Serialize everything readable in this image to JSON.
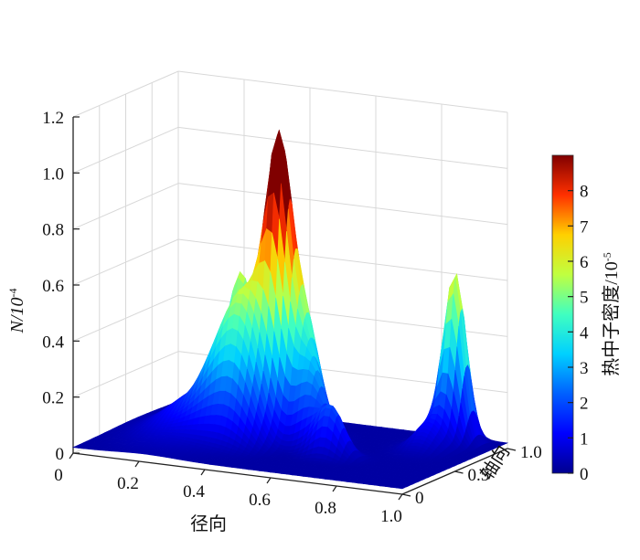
{
  "chart_data": {
    "type": "surface3d",
    "x_axis": {
      "label": "径向",
      "range": [
        0,
        1.0
      ],
      "ticks": [
        "0",
        "0.2",
        "0.4",
        "0.6",
        "0.8",
        "1.0"
      ]
    },
    "y_axis": {
      "label": "轴向",
      "range": [
        0,
        1.0
      ],
      "ticks": [
        "0",
        "0.5",
        "1.0"
      ]
    },
    "z_axis": {
      "label": "N/10",
      "label_exp": "-4",
      "range": [
        0,
        1.2
      ],
      "ticks": [
        "0",
        "0.2",
        "0.4",
        "0.6",
        "0.8",
        "1.0",
        "1.2"
      ]
    },
    "colorbar": {
      "label": "热中子密度/10",
      "label_exp": "-5",
      "range": [
        0,
        9
      ],
      "ticks": [
        "0",
        "1",
        "2",
        "3",
        "4",
        "5",
        "6",
        "7",
        "8"
      ],
      "colormap": "jet"
    },
    "grid": true,
    "base_value": 0.02,
    "peaks": [
      {
        "x": 0.45,
        "y": 0.55,
        "z": 0.88,
        "sx": 0.035,
        "sy": 0.06
      },
      {
        "x": 0.4,
        "y": 0.45,
        "z": 0.35,
        "sx": 0.05,
        "sy": 0.1
      },
      {
        "x": 0.52,
        "y": 0.58,
        "z": 0.4,
        "sx": 0.04,
        "sy": 0.08
      },
      {
        "x": 0.22,
        "y": 0.6,
        "z": 0.15,
        "sx": 0.09,
        "sy": 0.25
      },
      {
        "x": 0.29,
        "y": 0.7,
        "z": 0.45,
        "sx": 0.04,
        "sy": 0.05
      },
      {
        "x": 0.33,
        "y": 0.42,
        "z": 0.28,
        "sx": 0.06,
        "sy": 0.09
      },
      {
        "x": 0.58,
        "y": 0.48,
        "z": 0.22,
        "sx": 0.04,
        "sy": 0.06
      },
      {
        "x": 0.66,
        "y": 0.38,
        "z": 0.18,
        "sx": 0.04,
        "sy": 0.05
      },
      {
        "x": 0.88,
        "y": 0.88,
        "z": 0.58,
        "sx": 0.03,
        "sy": 0.055
      },
      {
        "x": 0.85,
        "y": 0.75,
        "z": 0.1,
        "sx": 0.04,
        "sy": 0.1
      }
    ]
  }
}
